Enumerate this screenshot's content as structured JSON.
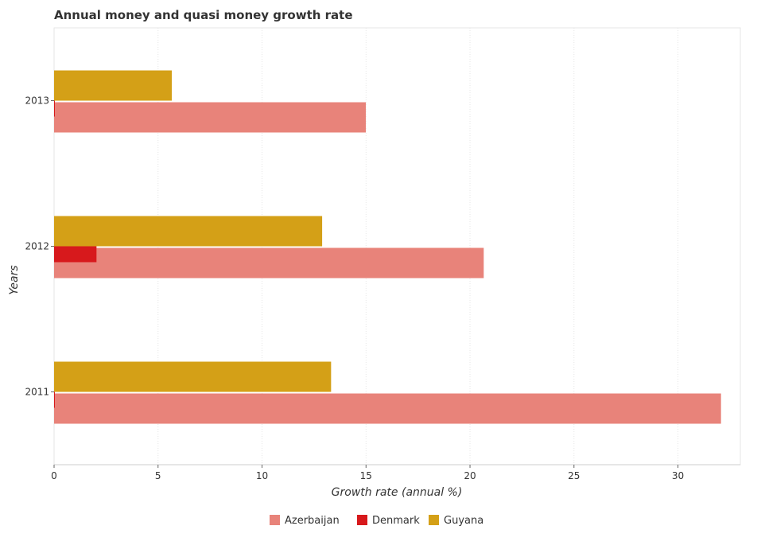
{
  "chart_data": {
    "type": "bar",
    "orientation": "horizontal",
    "title": "Annual money and quasi money growth rate",
    "xlabel": "Growth rate (annual %)",
    "ylabel": "Years",
    "categories": [
      "2011",
      "2012",
      "2013"
    ],
    "xlim": [
      0,
      33
    ],
    "xticks": [
      0,
      5,
      10,
      15,
      20,
      25,
      30
    ],
    "series": [
      {
        "name": "Azerbaijan",
        "color": "#e8837a",
        "values": [
          32.07,
          20.66,
          14.99
        ]
      },
      {
        "name": "Denmark",
        "color": "#d7191c",
        "values": [
          0,
          2.04,
          0
        ]
      },
      {
        "name": "Guyana",
        "color": "#d4a017",
        "values": [
          13.32,
          12.89,
          5.66
        ]
      }
    ],
    "legend_position": "bottom",
    "grid": true
  }
}
